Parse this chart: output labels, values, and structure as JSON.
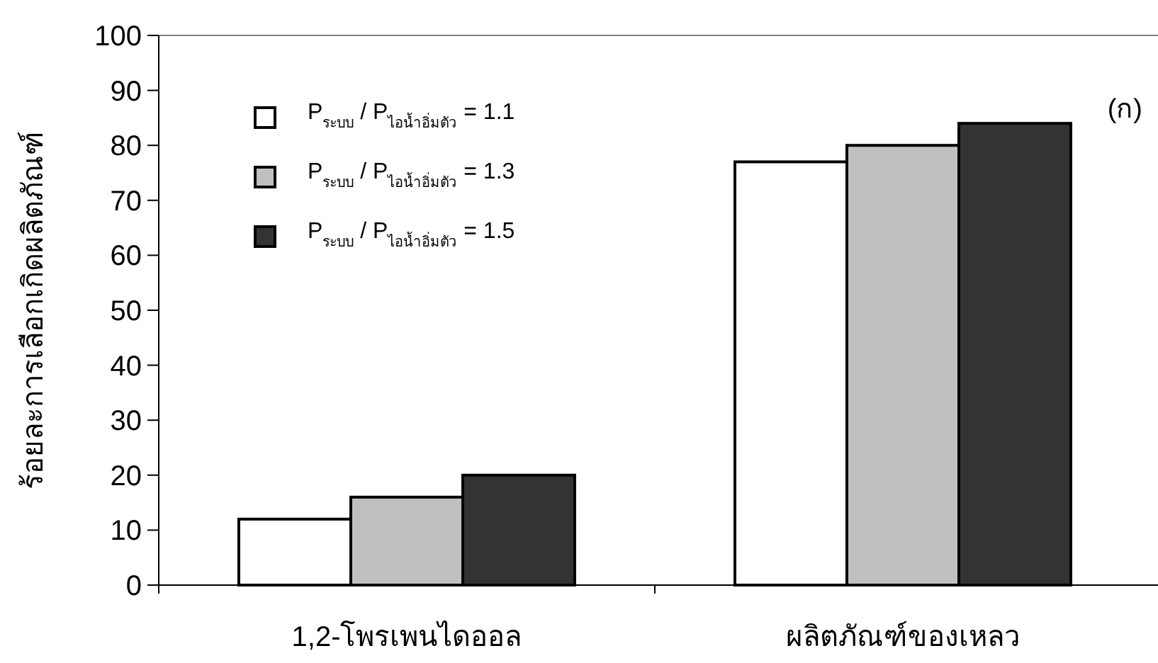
{
  "chart_data": {
    "type": "bar",
    "ylabel": "ร้อยละการเลือกเกิดผลิตภัณฑ์",
    "categories": [
      "1,2-โพรเพนไดออล",
      "ผลิตภัณฑ์ของเหลว"
    ],
    "series": [
      {
        "name": "P$_{ระบบ}$ / P$_{ไอน้ำอิ่มตัว}$ = 1.1",
        "color": "#ffffff",
        "values": [
          12,
          77
        ]
      },
      {
        "name": "P$_{ระบบ}$ / P$_{ไอน้ำอิ่มตัว}$ = 1.3",
        "color": "#c0c0c0",
        "values": [
          16,
          80
        ]
      },
      {
        "name": "P$_{ระบบ}$ / P$_{ไอน้ำอิ่มตัว}$ = 1.5",
        "color": "#333333",
        "values": [
          20,
          84
        ]
      }
    ],
    "ylim": [
      0,
      100
    ],
    "yticks": [
      0,
      10,
      20,
      30,
      40,
      50,
      60,
      70,
      80,
      90,
      100
    ],
    "legend": "top left",
    "annotations": [
      "(ก)"
    ]
  }
}
